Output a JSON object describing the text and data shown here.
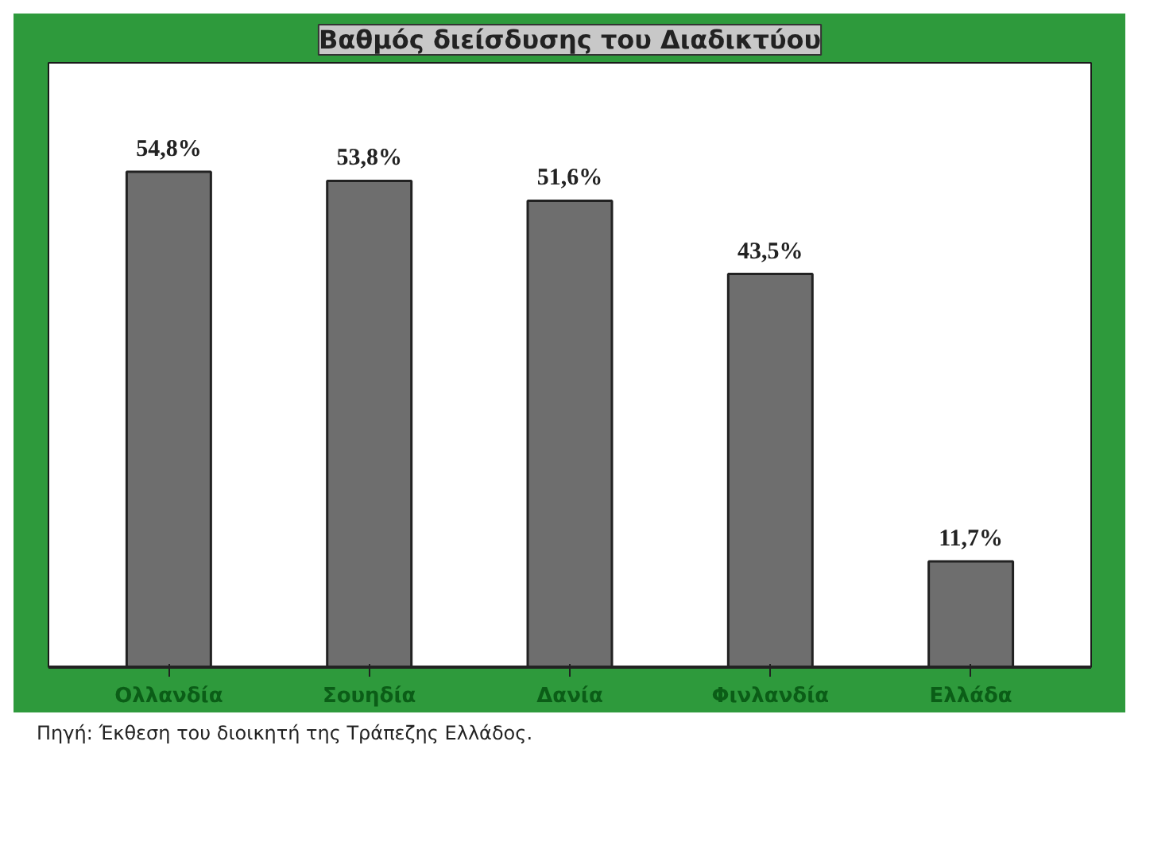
{
  "chart_data": {
    "type": "bar",
    "title": "Βαθμός διείσδυσης του Διαδικτύου",
    "categories": [
      "Ολλανδία",
      "Σουηδία",
      "Δανία",
      "Φινλανδία",
      "Ελλάδα"
    ],
    "values": [
      54.8,
      53.8,
      51.6,
      43.5,
      11.7
    ],
    "value_labels": [
      "54,8%",
      "53,8%",
      "51,6%",
      "43,5%",
      "11,7%"
    ],
    "color": "#6e6e6e",
    "annotations": [
      "Πηγή: Έκθεση του διοικητή της Τράπεζης Ελλάδος."
    ]
  }
}
